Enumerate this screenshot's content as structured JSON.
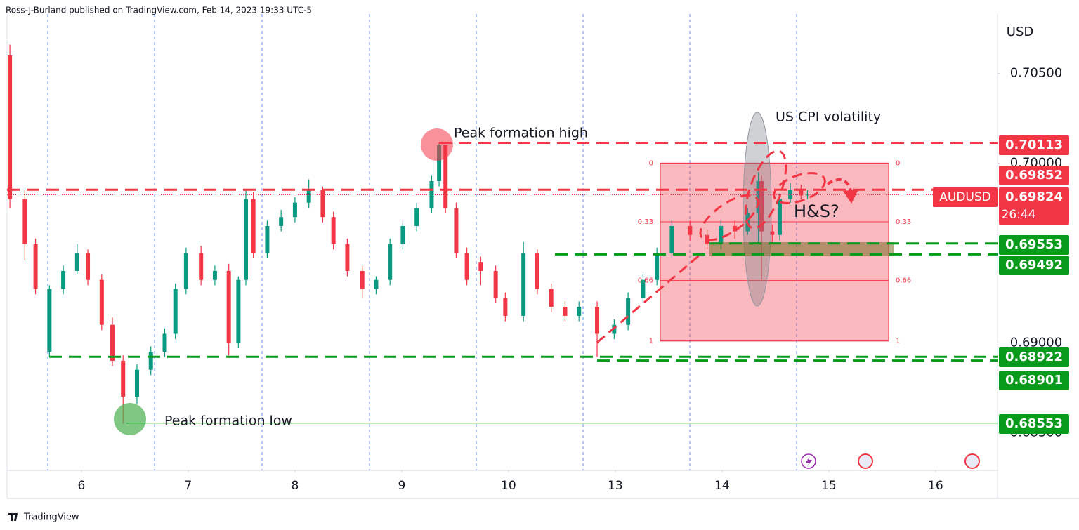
{
  "header": {
    "text": "Ross-J-Burland published on TradingView.com, Feb 14, 2023 19:33 UTC-5"
  },
  "chart_data": {
    "type": "candlestick",
    "currency": "USD",
    "xlim": [
      -0.697,
      8.58
    ],
    "xticks": [
      {
        "value": 0,
        "label": "6"
      },
      {
        "value": 1,
        "label": "7"
      },
      {
        "value": 2,
        "label": "8"
      },
      {
        "value": 3,
        "label": "9"
      },
      {
        "value": 4,
        "label": "10"
      },
      {
        "value": 5,
        "label": "13"
      },
      {
        "value": 6,
        "label": "14"
      },
      {
        "value": 7,
        "label": "15"
      },
      {
        "value": 8,
        "label": "16"
      }
    ],
    "ylim": [
      0.6829,
      0.7083
    ],
    "yticks": [
      {
        "value": 0.705,
        "label": "0.70500"
      },
      {
        "value": 0.7,
        "label": "0.70000"
      },
      {
        "value": 0.69,
        "label": "0.69000"
      },
      {
        "value": 0.685,
        "label": "0.68500"
      }
    ],
    "up_color": "#089981",
    "down_color": "#f23645",
    "x": [
      -0.67,
      -0.53,
      -0.43,
      -0.3,
      -0.17,
      -0.04,
      0.06,
      0.19,
      0.29,
      0.39,
      0.52,
      0.65,
      0.78,
      0.88,
      0.98,
      1.12,
      1.25,
      1.38,
      1.47,
      1.54,
      1.61,
      1.74,
      1.87,
      2.0,
      2.13,
      2.26,
      2.36,
      2.49,
      2.63,
      2.76,
      2.89,
      3.01,
      3.14,
      3.28,
      3.35,
      3.41,
      3.51,
      3.61,
      3.74,
      3.88,
      3.97,
      4.14,
      4.27,
      4.4,
      4.53,
      4.66,
      4.83,
      4.99,
      5.12,
      5.26,
      5.39,
      5.53,
      5.7,
      5.86,
      5.99,
      6.12,
      6.24,
      6.34,
      6.37,
      6.47,
      6.54,
      6.64,
      6.74,
      6.8
    ],
    "open": [
      0.706,
      0.698,
      0.6955,
      0.6895,
      0.693,
      0.694,
      0.695,
      0.6935,
      0.691,
      0.689,
      0.687,
      0.6885,
      0.6895,
      0.6905,
      0.693,
      0.695,
      0.6935,
      0.694,
      0.69,
      0.6935,
      0.698,
      0.695,
      0.6965,
      0.697,
      0.6978,
      0.6985,
      0.697,
      0.6955,
      0.694,
      0.693,
      0.6935,
      0.6955,
      0.6965,
      0.6975,
      0.699,
      0.701,
      0.6975,
      0.695,
      0.6945,
      0.694,
      0.6925,
      0.6915,
      0.695,
      0.693,
      0.692,
      0.6915,
      0.692,
      0.6905,
      0.691,
      0.6925,
      0.6935,
      0.695,
      0.6965,
      0.696,
      0.6955,
      0.6965,
      0.6962,
      0.6972,
      0.699,
      0.6962,
      0.696,
      0.698,
      0.6985,
      0.6982
    ],
    "high": [
      0.7066,
      0.6985,
      0.6958,
      0.6932,
      0.6943,
      0.6955,
      0.6952,
      0.6938,
      0.6914,
      0.6893,
      0.6888,
      0.6898,
      0.6908,
      0.6933,
      0.6953,
      0.6954,
      0.6943,
      0.6944,
      0.6937,
      0.6985,
      0.6984,
      0.6968,
      0.6974,
      0.6981,
      0.6991,
      0.6987,
      0.6973,
      0.6958,
      0.6943,
      0.6937,
      0.6958,
      0.6968,
      0.6978,
      0.6993,
      0.70113,
      0.7008,
      0.6978,
      0.6953,
      0.6948,
      0.6943,
      0.6928,
      0.6956,
      0.6952,
      0.6933,
      0.6923,
      0.6923,
      0.6923,
      0.6913,
      0.6928,
      0.6938,
      0.6953,
      0.6968,
      0.6968,
      0.6963,
      0.6968,
      0.6968,
      0.6975,
      0.6995,
      0.6993,
      0.6966,
      0.6983,
      0.6989,
      0.6988,
      0.6985
    ],
    "low": [
      0.6975,
      0.6946,
      0.6927,
      0.6892,
      0.6927,
      0.6938,
      0.6932,
      0.6907,
      0.6887,
      0.6855,
      0.6866,
      0.6882,
      0.6892,
      0.6902,
      0.6927,
      0.6932,
      0.6932,
      0.6893,
      0.6897,
      0.6932,
      0.6947,
      0.6947,
      0.6962,
      0.6967,
      0.6975,
      0.6967,
      0.6952,
      0.6937,
      0.6925,
      0.6927,
      0.6932,
      0.6952,
      0.6962,
      0.6972,
      0.6987,
      0.6972,
      0.6947,
      0.6932,
      0.6932,
      0.6922,
      0.6912,
      0.6912,
      0.6927,
      0.6917,
      0.6912,
      0.6912,
      0.6892,
      0.6902,
      0.6907,
      0.6922,
      0.6932,
      0.6947,
      0.6957,
      0.6952,
      0.6952,
      0.6958,
      0.696,
      0.6955,
      0.6935,
      0.6955,
      0.6957,
      0.6978,
      0.698,
      0.698
    ],
    "close": [
      0.698,
      0.6955,
      0.693,
      0.693,
      0.694,
      0.695,
      0.6935,
      0.691,
      0.689,
      0.687,
      0.6885,
      0.6895,
      0.6905,
      0.693,
      0.695,
      0.6935,
      0.694,
      0.69,
      0.6935,
      0.698,
      0.695,
      0.6965,
      0.697,
      0.6978,
      0.6985,
      0.697,
      0.6955,
      0.694,
      0.693,
      0.6935,
      0.6955,
      0.6965,
      0.6975,
      0.699,
      0.701,
      0.6975,
      0.695,
      0.6935,
      0.694,
      0.6925,
      0.6915,
      0.695,
      0.693,
      0.692,
      0.6915,
      0.692,
      0.6905,
      0.691,
      0.6925,
      0.6935,
      0.695,
      0.6965,
      0.696,
      0.6955,
      0.6965,
      0.6962,
      0.6972,
      0.699,
      0.6962,
      0.696,
      0.698,
      0.6985,
      0.6982,
      0.69824
    ],
    "levels": [
      {
        "value": 0.70113,
        "color": "#f23645",
        "style": "dashed"
      },
      {
        "value": 0.69852,
        "color": "#f23645",
        "style": "dashed"
      },
      {
        "value": 0.69553,
        "color": "#089a1a",
        "style": "dashed"
      },
      {
        "value": 0.69492,
        "color": "#089a1a",
        "style": "dashed"
      },
      {
        "value": 0.68922,
        "color": "#089a1a",
        "style": "dashed"
      },
      {
        "value": 0.68901,
        "color": "#089a1a",
        "style": "dashed"
      },
      {
        "value": 0.68553,
        "color": "#089a1a",
        "style": "solid"
      }
    ],
    "last": {
      "symbol": "AUDUSD",
      "value": 0.69824,
      "countdown": "26:44",
      "color": "#f23645"
    },
    "fib": {
      "levels": [
        0,
        0.33,
        0.66,
        1
      ],
      "top": 0.7,
      "bottom": 0.6901
    },
    "annotations": [
      "Peak formation high",
      "Peak formation low",
      "US CPI volatility",
      "H&S?"
    ]
  },
  "footer": {
    "brand": "TradingView"
  }
}
